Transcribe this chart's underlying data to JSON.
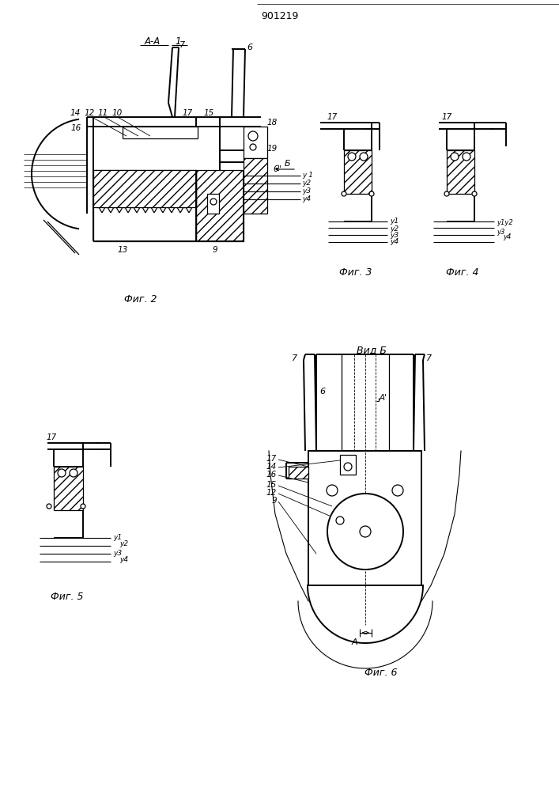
{
  "title": "901219",
  "bg_color": "#ffffff",
  "line_color": "#000000",
  "fig_width": 7.07,
  "fig_height": 10.0,
  "dpi": 100,
  "fig2_label": "Фиг. 2",
  "fig3_label": "Фиг. 3",
  "fig4_label": "Фиг. 4",
  "fig5_label": "Фиг. 5",
  "fig6_label": "Фиг. 6",
  "vid_b": "Вид Б",
  "aa_label": "А-А",
  "b_label": "Б"
}
